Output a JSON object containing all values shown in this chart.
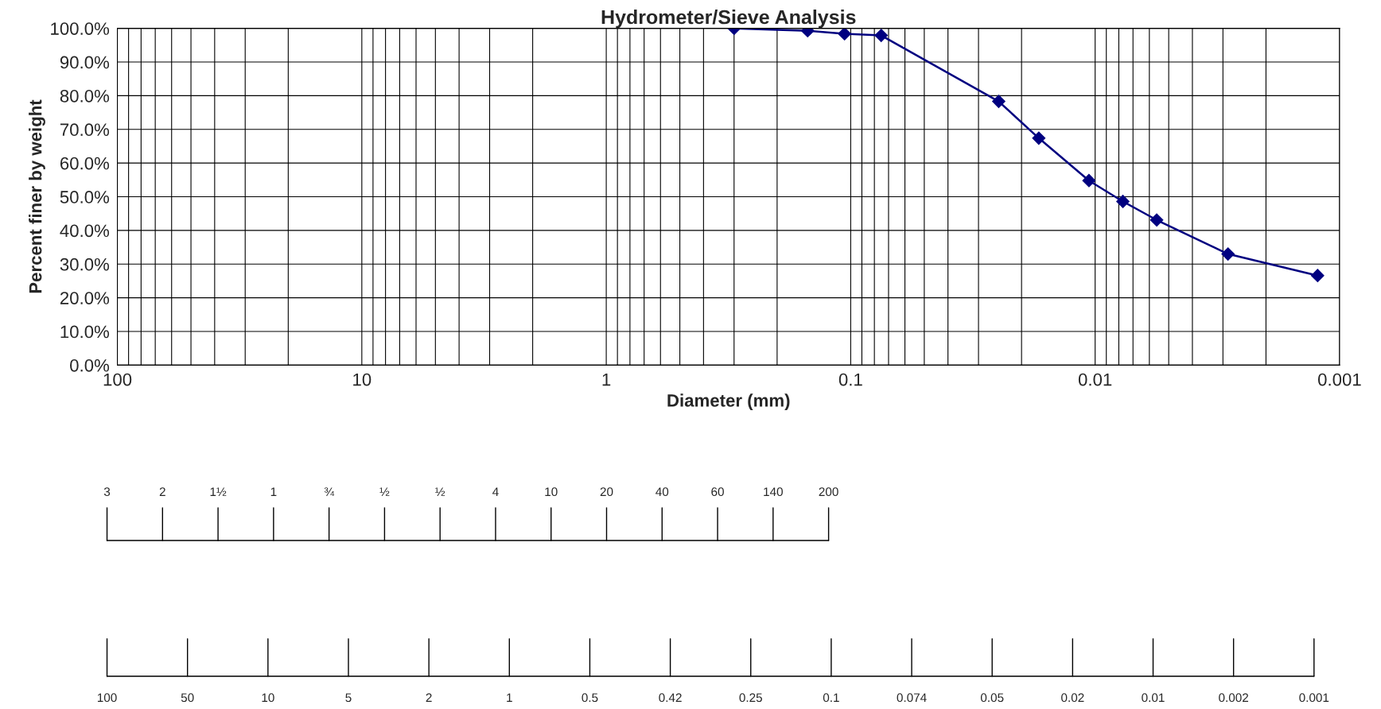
{
  "chart_data": [
    {
      "type": "line",
      "title": "Hydrometer/Sieve Analysis",
      "xlabel": "Diameter (mm)",
      "ylabel": "Percent finer by weight",
      "log": "x",
      "xlim": [
        100,
        0.001
      ],
      "xticks": [
        100,
        10,
        1,
        {
          "value": 0.1,
          "label": "0.1"
        },
        {
          "value": 0.01,
          "label": "0.01"
        },
        {
          "value": 0.001,
          "label": "0.001"
        }
      ],
      "ylim": [
        0,
        100
      ],
      "yticks": [
        {
          "value": 0,
          "label": "0.0%"
        },
        {
          "value": 10,
          "label": "10.0%"
        },
        {
          "value": 20,
          "label": "20.0%"
        },
        {
          "value": 30,
          "label": "30.0%"
        },
        {
          "value": 40,
          "label": "40.0%"
        },
        {
          "value": 50,
          "label": "50.0%"
        },
        {
          "value": 60,
          "label": "60.0%"
        },
        {
          "value": 70,
          "label": "70.0%"
        },
        {
          "value": 80,
          "label": "80.0%"
        },
        {
          "value": 90,
          "label": "90.0%"
        },
        {
          "value": 100,
          "label": "100.0%"
        }
      ],
      "grid": true,
      "marker": "diamond",
      "line_style": "solid",
      "series": [
        {
          "color": "#000080",
          "x": [
            0.3,
            0.15,
            0.106,
            0.075,
            0.0248,
            0.017,
            0.0106,
            0.0077,
            0.0056,
            0.00286,
            0.00123
          ],
          "values": [
            100.0,
            99.3,
            98.4,
            97.9,
            78.3,
            67.4,
            54.8,
            48.6,
            43.1,
            33.0,
            26.6
          ]
        }
      ]
    },
    {
      "type": "other",
      "annotations": [
        "3",
        "2",
        "1½",
        "1",
        "¾",
        "½",
        "½",
        "4",
        "10",
        "20",
        "40",
        "60",
        "140",
        "200",
        "100",
        "50",
        "10",
        "5",
        "2",
        "1",
        "0.5",
        "0.42",
        "0.25",
        "0.1",
        "0.074",
        "0.05",
        "0.02",
        "0.01",
        "0.002",
        "0.001"
      ]
    }
  ]
}
